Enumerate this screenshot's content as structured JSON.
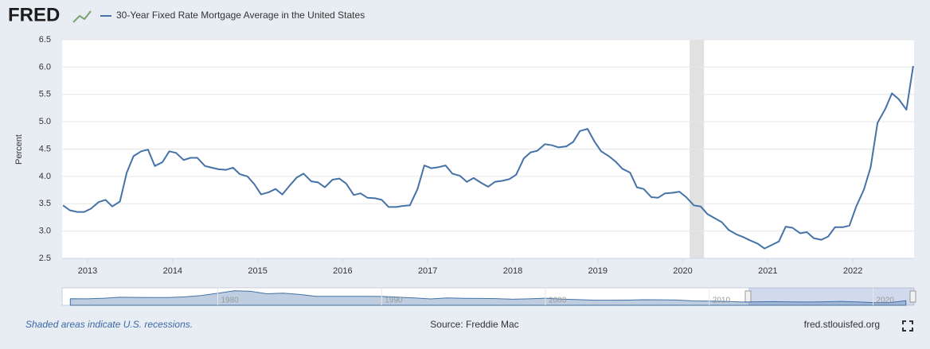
{
  "logo": "FRED",
  "chart_data": {
    "type": "line",
    "ylabel": "Percent",
    "xlim": [
      2012.7,
      2022.72
    ],
    "ylim": [
      2.5,
      6.5
    ],
    "xticks": [
      2013,
      2014,
      2015,
      2016,
      2017,
      2018,
      2019,
      2020,
      2021,
      2022
    ],
    "yticks": [
      2.5,
      {
        "value": 3,
        "label": "3.0"
      },
      3.5,
      {
        "value": 4,
        "label": "4.0"
      },
      4.5,
      {
        "value": 5,
        "label": "5.0"
      },
      5.5,
      {
        "value": 6,
        "label": "6.0"
      },
      6.5
    ],
    "grid": true,
    "recessions": [
      {
        "start": 2020.08,
        "end": 2020.25
      }
    ],
    "x": [
      2012.71,
      2012.79,
      2012.88,
      2012.96,
      2013.04,
      2013.13,
      2013.21,
      2013.29,
      2013.38,
      2013.46,
      2013.54,
      2013.63,
      2013.71,
      2013.79,
      2013.88,
      2013.96,
      2014.04,
      2014.13,
      2014.21,
      2014.29,
      2014.38,
      2014.46,
      2014.54,
      2014.63,
      2014.71,
      2014.79,
      2014.88,
      2014.96,
      2015.04,
      2015.13,
      2015.21,
      2015.29,
      2015.38,
      2015.46,
      2015.54,
      2015.63,
      2015.71,
      2015.79,
      2015.88,
      2015.96,
      2016.04,
      2016.13,
      2016.21,
      2016.29,
      2016.38,
      2016.46,
      2016.54,
      2016.63,
      2016.71,
      2016.79,
      2016.88,
      2016.96,
      2017.04,
      2017.13,
      2017.21,
      2017.29,
      2017.38,
      2017.46,
      2017.54,
      2017.63,
      2017.71,
      2017.79,
      2017.88,
      2017.96,
      2018.04,
      2018.13,
      2018.21,
      2018.29,
      2018.38,
      2018.46,
      2018.54,
      2018.63,
      2018.71,
      2018.79,
      2018.88,
      2018.96,
      2019.04,
      2019.13,
      2019.21,
      2019.29,
      2019.38,
      2019.46,
      2019.54,
      2019.63,
      2019.71,
      2019.79,
      2019.88,
      2019.96,
      2020.04,
      2020.13,
      2020.21,
      2020.29,
      2020.38,
      2020.46,
      2020.54,
      2020.63,
      2020.71,
      2020.79,
      2020.88,
      2020.96,
      2021.04,
      2021.13,
      2021.21,
      2021.29,
      2021.38,
      2021.46,
      2021.54,
      2021.63,
      2021.71,
      2021.79,
      2021.88,
      2021.96,
      2022.04,
      2022.13,
      2022.21,
      2022.29,
      2022.38,
      2022.46,
      2022.54,
      2022.63,
      2022.71
    ],
    "series": [
      {
        "name": "30-Year Fixed Rate Mortgage Average in the United States",
        "color": "#4572a7",
        "values": [
          3.47,
          3.38,
          3.35,
          3.35,
          3.41,
          3.53,
          3.57,
          3.45,
          3.54,
          4.07,
          4.37,
          4.46,
          4.49,
          4.19,
          4.26,
          4.46,
          4.43,
          4.3,
          4.34,
          4.34,
          4.19,
          4.16,
          4.13,
          4.12,
          4.16,
          4.04,
          4.0,
          3.86,
          3.67,
          3.71,
          3.77,
          3.67,
          3.84,
          3.98,
          4.05,
          3.91,
          3.89,
          3.8,
          3.94,
          3.96,
          3.87,
          3.66,
          3.69,
          3.61,
          3.6,
          3.57,
          3.44,
          3.44,
          3.46,
          3.47,
          3.77,
          4.2,
          4.15,
          4.17,
          4.2,
          4.05,
          4.01,
          3.9,
          3.97,
          3.88,
          3.81,
          3.9,
          3.92,
          3.95,
          4.03,
          4.33,
          4.44,
          4.47,
          4.59,
          4.57,
          4.53,
          4.55,
          4.63,
          4.83,
          4.87,
          4.64,
          4.46,
          4.37,
          4.27,
          4.14,
          4.07,
          3.8,
          3.77,
          3.62,
          3.61,
          3.69,
          3.7,
          3.72,
          3.62,
          3.47,
          3.45,
          3.31,
          3.23,
          3.16,
          3.02,
          2.94,
          2.89,
          2.83,
          2.77,
          2.68,
          2.74,
          2.81,
          3.08,
          3.06,
          2.96,
          2.98,
          2.87,
          2.84,
          2.9,
          3.07,
          3.07,
          3.1,
          3.45,
          3.76,
          4.17,
          4.98,
          5.23,
          5.52,
          5.41,
          5.22,
          6.02
        ]
      }
    ]
  },
  "navigator": {
    "xlim": [
      1970.5,
      2022.5
    ],
    "ylim": [
      0,
      20
    ],
    "xticks": [
      1980,
      1990,
      2000,
      2010,
      2020
    ],
    "x": [
      1971,
      1972,
      1973,
      1974,
      1975,
      1976,
      1977,
      1978,
      1979,
      1980,
      1981,
      1982,
      1983,
      1984,
      1985,
      1986,
      1987,
      1988,
      1989,
      1990,
      1991,
      1992,
      1993,
      1994,
      1995,
      1996,
      1997,
      1998,
      1999,
      2000,
      2001,
      2002,
      2003,
      2004,
      2005,
      2006,
      2007,
      2008,
      2009,
      2010,
      2011,
      2012,
      2013,
      2014,
      2015,
      2016,
      2017,
      2018,
      2019,
      2020,
      2021,
      2022
    ],
    "values": [
      7.5,
      7.4,
      8.0,
      9.2,
      9.0,
      8.9,
      8.9,
      9.6,
      11.2,
      13.7,
      16.6,
      16.0,
      13.2,
      13.9,
      12.4,
      10.2,
      10.2,
      10.3,
      10.3,
      10.1,
      9.3,
      8.4,
      7.3,
      8.4,
      7.9,
      7.8,
      7.6,
      6.9,
      7.4,
      8.1,
      7.0,
      6.5,
      5.8,
      5.8,
      5.9,
      6.4,
      6.3,
      6.0,
      5.0,
      4.7,
      4.5,
      3.7,
      4.0,
      4.2,
      3.9,
      3.7,
      4.0,
      4.5,
      3.9,
      3.1,
      3.0,
      5.3
    ]
  },
  "footer": {
    "note": "Shaded areas indicate U.S. recessions.",
    "source": "Source: Freddie Mac",
    "site": "fred.stlouisfed.org"
  }
}
